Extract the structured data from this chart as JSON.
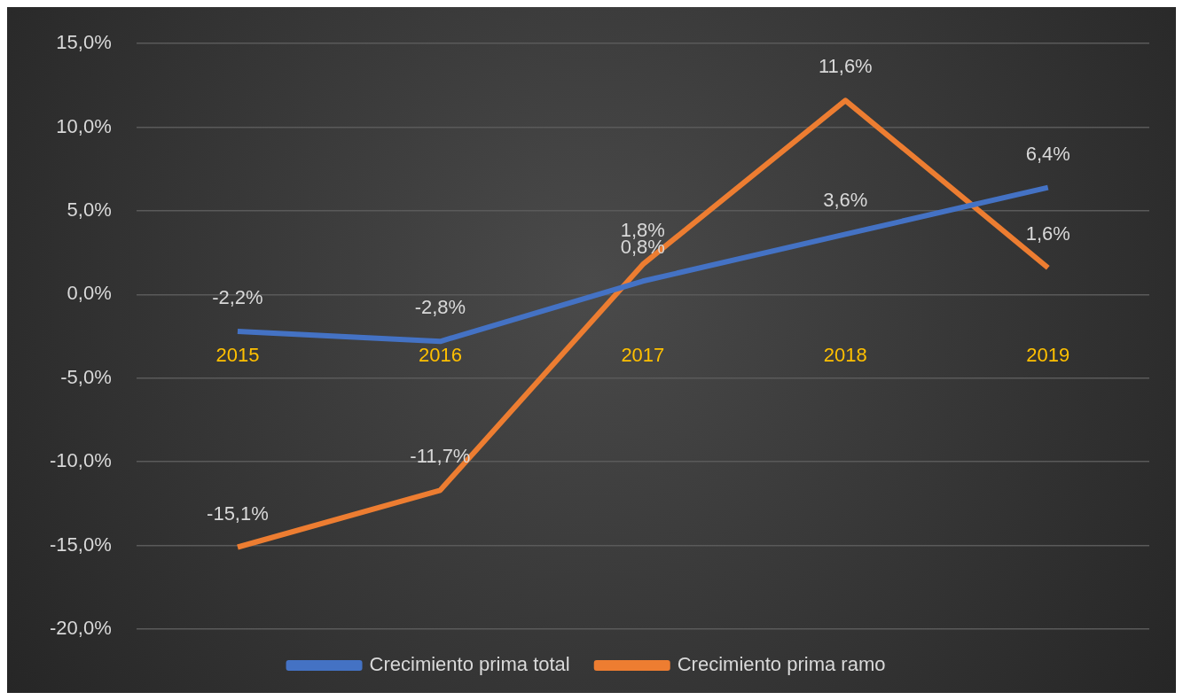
{
  "chart_data": {
    "type": "line",
    "categories": [
      "2015",
      "2016",
      "2017",
      "2018",
      "2019"
    ],
    "series": [
      {
        "name": "Crecimiento prima total",
        "color": "#4472c4",
        "values": [
          -2.2,
          -2.8,
          0.8,
          3.6,
          6.4
        ],
        "value_labels": [
          "-2,2%",
          "-2,8%",
          "0,8%",
          "3,6%",
          "6,4%"
        ]
      },
      {
        "name": "Crecimiento prima ramo",
        "color": "#ed7d31",
        "values": [
          -15.1,
          -11.7,
          1.8,
          11.6,
          1.6
        ],
        "value_labels": [
          "-15,1%",
          "-11,7%",
          "1,8%",
          "11,6%",
          "1,6%"
        ]
      }
    ],
    "ylim": [
      -20,
      15
    ],
    "yticks": [
      {
        "value": -20,
        "label": "-20,0%"
      },
      {
        "value": -15,
        "label": "-15,0%"
      },
      {
        "value": -10,
        "label": "-10,0%"
      },
      {
        "value": -5,
        "label": "-5,0%"
      },
      {
        "value": 0,
        "label": "0,0%"
      },
      {
        "value": 5,
        "label": "5,0%"
      },
      {
        "value": 10,
        "label": "10,0%"
      },
      {
        "value": 15,
        "label": "15,0%"
      }
    ],
    "grid": "y",
    "legend": "bottom",
    "marker": "none",
    "line_style": "solid"
  }
}
